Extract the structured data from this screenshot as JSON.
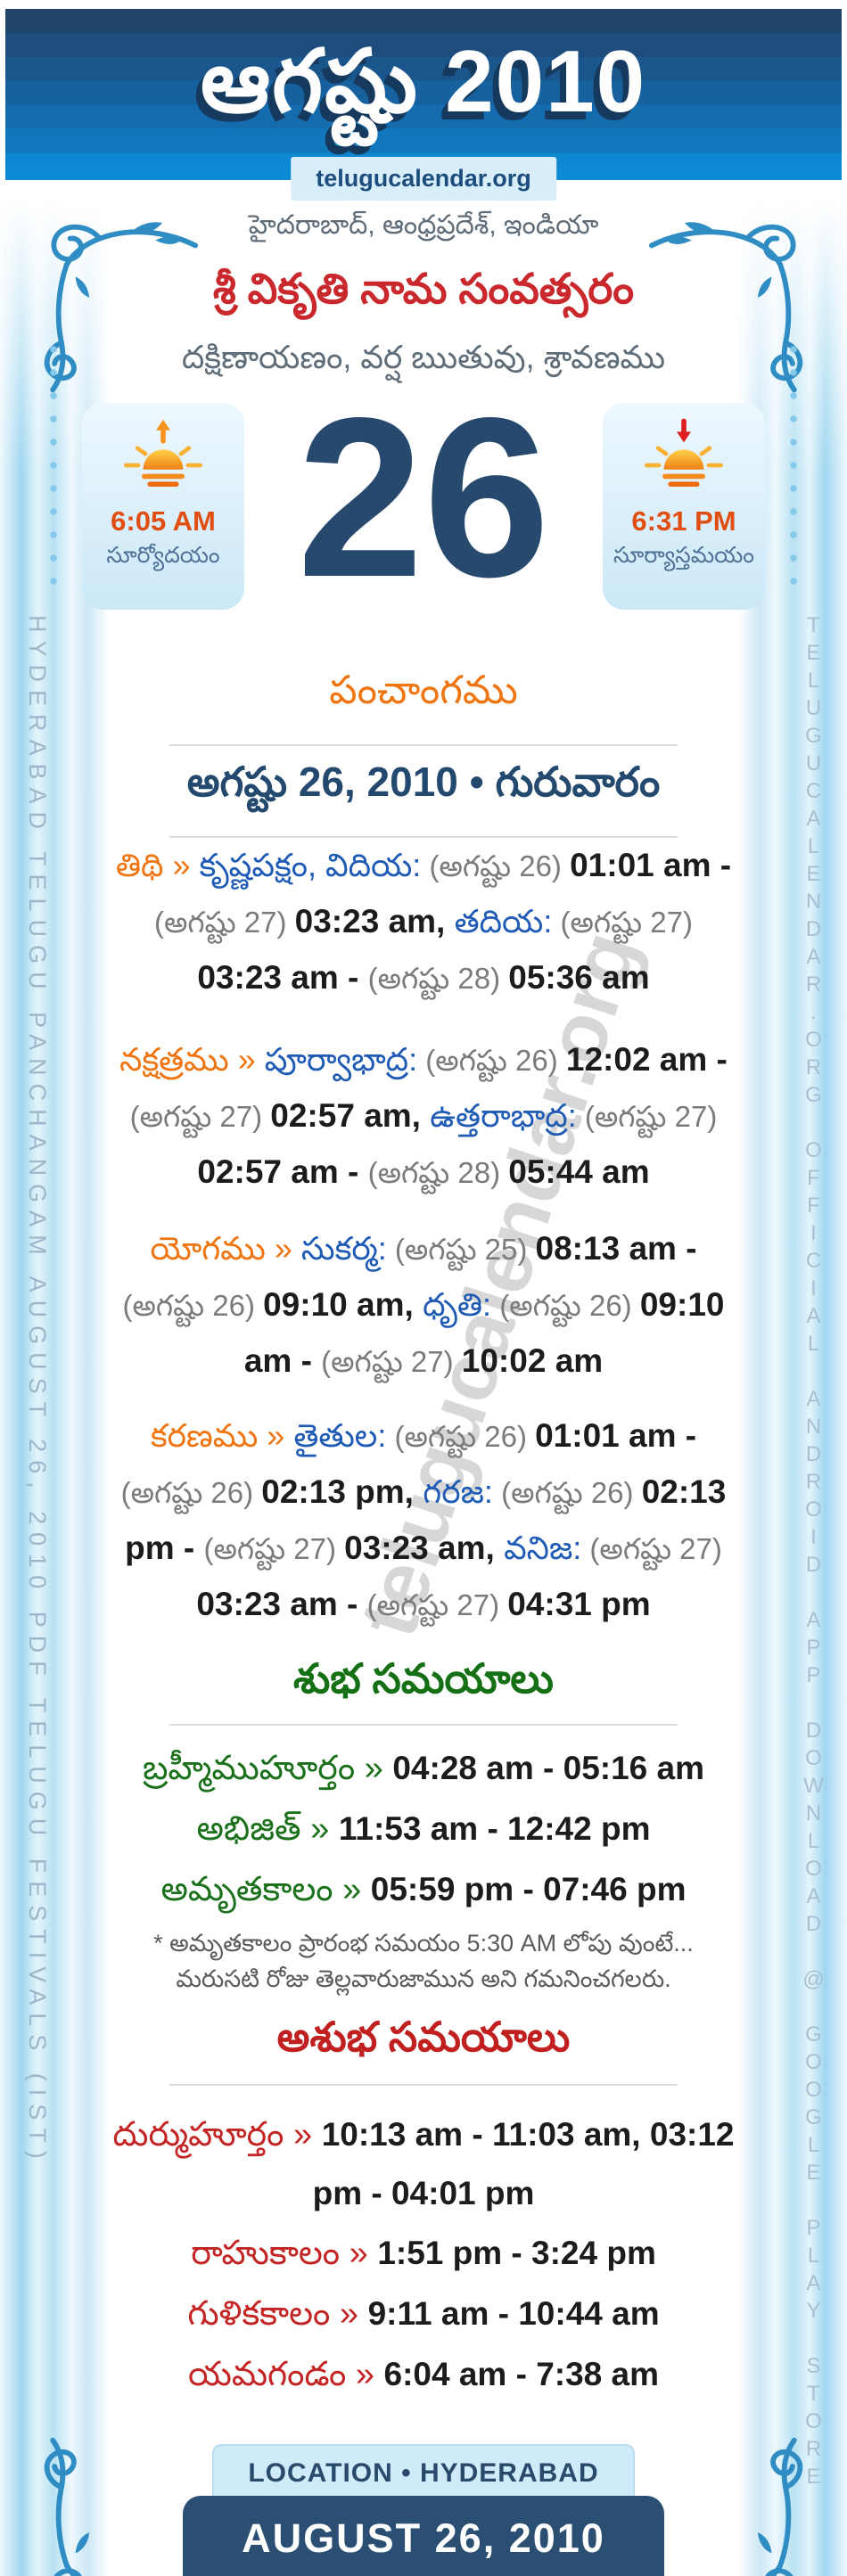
{
  "header": {
    "title": "ఆగష్టు 2010",
    "site": "telugucalendar.org"
  },
  "intro": {
    "location_line": "హైదరాబాద్, ఆంధ్రప్రదేశ్, ఇండియా",
    "year_line": "శ్రీ వికృతి నామ సంవత్సరం",
    "ayana_line": "దక్షిణాయణం, వర్ష ఋతువు, శ్రావణము"
  },
  "day": {
    "number": "26",
    "sunrise": {
      "time": "6:05 AM",
      "label": "సూర్యోదయం"
    },
    "sunset": {
      "time": "6:31 PM",
      "label": "సూర్యాస్తమయం"
    }
  },
  "panchangam": {
    "heading": "పంచాంగము",
    "date_heading": "అగష్టు 26, 2010 • గురువారం",
    "rows": {
      "tithi": {
        "segments": [
          {
            "t": "తిథి » ",
            "c": "o"
          },
          {
            "t": "కృష్ణపక్షం, విదియ:",
            "c": "b"
          },
          {
            "t": " (అగష్టు 26) ",
            "c": "g"
          },
          {
            "t": "01:01 am - ",
            "c": "k"
          },
          {
            "t": "(అగష్టు 27) ",
            "c": "g"
          },
          {
            "t": "03:23 am, ",
            "c": "k"
          },
          {
            "t": "తదియ:",
            "c": "b"
          },
          {
            "t": " (అగష్టు 27) ",
            "c": "g"
          },
          {
            "t": "03:23 am - ",
            "c": "k"
          },
          {
            "t": "(అగష్టు 28) ",
            "c": "g"
          },
          {
            "t": "05:36 am",
            "c": "k"
          }
        ]
      },
      "nakshatra": {
        "segments": [
          {
            "t": "నక్షత్రము » ",
            "c": "o"
          },
          {
            "t": "పూర్వాభాద్ర:",
            "c": "b"
          },
          {
            "t": " (అగష్టు 26) ",
            "c": "g"
          },
          {
            "t": "12:02 am - ",
            "c": "k"
          },
          {
            "t": "(అగష్టు 27) ",
            "c": "g"
          },
          {
            "t": "02:57 am, ",
            "c": "k"
          },
          {
            "t": "ఉత్తరాభాద్ర:",
            "c": "b"
          },
          {
            "t": " (అగష్టు 27) ",
            "c": "g"
          },
          {
            "t": "02:57 am - ",
            "c": "k"
          },
          {
            "t": "(అగష్టు 28) ",
            "c": "g"
          },
          {
            "t": "05:44 am",
            "c": "k"
          }
        ]
      },
      "yoga": {
        "segments": [
          {
            "t": "యోగము » ",
            "c": "o"
          },
          {
            "t": "సుకర్మ:",
            "c": "b"
          },
          {
            "t": " (అగష్టు 25) ",
            "c": "g"
          },
          {
            "t": "08:13 am - ",
            "c": "k"
          },
          {
            "t": "(అగష్టు 26) ",
            "c": "g"
          },
          {
            "t": "09:10 am, ",
            "c": "k"
          },
          {
            "t": "ధృతి:",
            "c": "b"
          },
          {
            "t": " (అగష్టు 26) ",
            "c": "g"
          },
          {
            "t": "09:10 am - ",
            "c": "k"
          },
          {
            "t": "(అగష్టు 27) ",
            "c": "g"
          },
          {
            "t": "10:02 am",
            "c": "k"
          }
        ]
      },
      "karana": {
        "segments": [
          {
            "t": "కరణము » ",
            "c": "o"
          },
          {
            "t": "తైతుల:",
            "c": "b"
          },
          {
            "t": " (అగష్టు 26) ",
            "c": "g"
          },
          {
            "t": "01:01 am - ",
            "c": "k"
          },
          {
            "t": "(అగష్టు 26) ",
            "c": "g"
          },
          {
            "t": "02:13 pm, ",
            "c": "k"
          },
          {
            "t": "గరజ:",
            "c": "b"
          },
          {
            "t": " (అగష్టు 26) ",
            "c": "g"
          },
          {
            "t": "02:13 pm - ",
            "c": "k"
          },
          {
            "t": "(అగష్టు 27) ",
            "c": "g"
          },
          {
            "t": "03:23 am, ",
            "c": "k"
          },
          {
            "t": "వనిజ:",
            "c": "b"
          },
          {
            "t": " (అగష్టు 27) ",
            "c": "g"
          },
          {
            "t": "03:23 am - ",
            "c": "k"
          },
          {
            "t": "(అగష్టు 27) ",
            "c": "g"
          },
          {
            "t": "04:31 pm",
            "c": "k"
          }
        ]
      }
    }
  },
  "subha": {
    "heading": "శుభ సమయాలు",
    "rows": {
      "brahmi": {
        "segments": [
          {
            "t": "బ్రహ్మీముహూర్తం » ",
            "c": "gr"
          },
          {
            "t": "04:28 am - 05:16 am",
            "c": "k"
          }
        ]
      },
      "abhijit": {
        "segments": [
          {
            "t": "అభిజిత్ » ",
            "c": "gr"
          },
          {
            "t": "11:53 am - 12:42 pm",
            "c": "k"
          }
        ]
      },
      "amruta": {
        "segments": [
          {
            "t": "అమృతకాలం » ",
            "c": "gr"
          },
          {
            "t": "05:59 pm - 07:46 pm",
            "c": "k"
          }
        ]
      }
    },
    "note": "* అమృతకాలం ప్రారంభ సమయం 5:30 AM లోపు వుంటే... మరుసటి రోజు తెల్లవారుజామున అని గమనించగలరు."
  },
  "ashubha": {
    "heading": "అశుభ సమయాలు",
    "rows": {
      "durmuhurtam": {
        "segments": [
          {
            "t": "దుర్ముహూర్తం » ",
            "c": "r"
          },
          {
            "t": "10:13 am - 11:03 am, 03:12 pm - 04:01 pm",
            "c": "k"
          }
        ]
      },
      "rahukalam": {
        "segments": [
          {
            "t": "రాహుకాలం » ",
            "c": "r"
          },
          {
            "t": "1:51 pm - 3:24 pm",
            "c": "k"
          }
        ]
      },
      "gulikakalam": {
        "segments": [
          {
            "t": "గుళికకాలం » ",
            "c": "r"
          },
          {
            "t": "9:11 am - 10:44 am",
            "c": "k"
          }
        ]
      },
      "yamagandam": {
        "segments": [
          {
            "t": "యమగండం » ",
            "c": "r"
          },
          {
            "t": "6:04 am - 7:38 am",
            "c": "k"
          }
        ]
      }
    }
  },
  "footer": {
    "location": "LOCATION • HYDERABAD",
    "date": "AUGUST 26, 2010"
  },
  "margins": {
    "left_text": "HYDERABAD TELUGU PANCHANGAM AUGUST 26, 2010 PDF TELUGU FESTIVALS (IST)",
    "right_text": "TELUGUCALENDAR.ORG OFFICIAL ANDROID APP DOWNLOAD @ GOOGLE PLAY STORE"
  },
  "watermark": "telugucalendar.org",
  "colors": {
    "header_top": "#22456a",
    "header_bottom": "#0d8bd6",
    "accent_orange": "#ee7511",
    "name_blue": "#1f5bb5",
    "date_gray": "#7b7b7b",
    "time_dark": "#1c1c1c",
    "good_green": "#157015",
    "bad_red": "#c02020",
    "year_red": "#c9282d",
    "navy": "#27496d",
    "sun_time_orange": "#e14e12",
    "flourish_blue": "#2f8dc3"
  }
}
